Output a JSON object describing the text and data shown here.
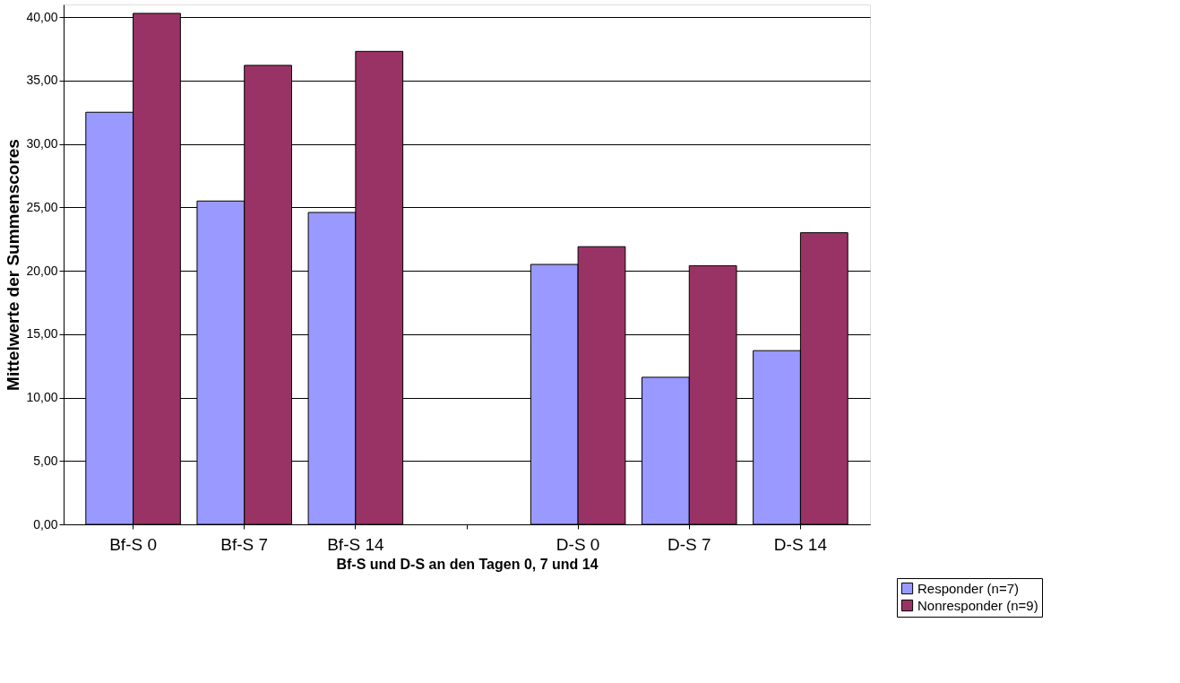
{
  "chart_data": {
    "type": "bar",
    "xlabel": "Bf-S und D-S an den Tagen 0, 7 und 14",
    "ylabel": "Mittelwerte der Summenscores",
    "categories": [
      "Bf-S 0",
      "Bf-S 7",
      "Bf-S 14",
      null,
      "D-S 0",
      "D-S 7",
      "D-S 14"
    ],
    "series": [
      {
        "name": "Responder (n=7)",
        "color": "#9999ff",
        "values": [
          32.5,
          25.5,
          24.6,
          null,
          20.5,
          11.6,
          13.7
        ]
      },
      {
        "name": "Nonresponder (n=9)",
        "color": "#993366",
        "values": [
          40.3,
          36.2,
          37.3,
          null,
          21.9,
          20.4,
          23.0
        ]
      }
    ],
    "ylim": [
      0,
      41
    ],
    "yticks": [
      {
        "value": 0,
        "label": "0,00"
      },
      {
        "value": 5,
        "label": "5,00"
      },
      {
        "value": 10,
        "label": "10,00"
      },
      {
        "value": 15,
        "label": "15,00"
      },
      {
        "value": 20,
        "label": "20,00"
      },
      {
        "value": 25,
        "label": "25,00"
      },
      {
        "value": 30,
        "label": "30,00"
      },
      {
        "value": 35,
        "label": "35,00"
      },
      {
        "value": 40,
        "label": "40,00"
      }
    ],
    "grid": "y",
    "legend": "bottom right"
  }
}
